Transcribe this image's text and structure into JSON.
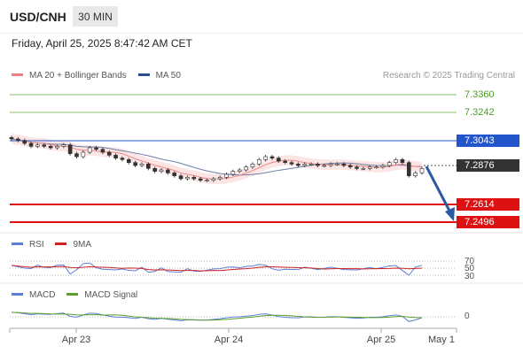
{
  "header": {
    "symbol": "USD/CNH",
    "timeframe": "30 MIN"
  },
  "datetime": "Friday, April 25, 2025 8:47:42 AM CET",
  "legend_price": {
    "ma20": "MA 20 + Bollinger Bands",
    "ma50": "MA 50"
  },
  "credit": "Research © 2025 Trading Central",
  "price_levels": {
    "r2": "7.3360",
    "r1": "7.3242",
    "pivot": "7.3043",
    "last": "7.2876",
    "s1": "7.2614",
    "s2": "7.2496"
  },
  "legend_rsi": {
    "rsi": "RSI",
    "ma": "9MA"
  },
  "rsi_levels": [
    "70",
    "50",
    "30"
  ],
  "legend_macd": {
    "macd": "MACD",
    "signal": "MACD Signal"
  },
  "macd_zero": "0",
  "x_axis": [
    "Apr 23",
    "Apr 24",
    "Apr 25",
    "May 1"
  ],
  "colors": {
    "resistance": "#86c06a",
    "pivot": "#2255cc",
    "support": "#dd1111",
    "last_bg": "#333333",
    "ma20": "#f08080",
    "ma50": "#2a4d8f",
    "rsi": "#5b7fd8",
    "macd": "#5b7fd8",
    "signal": "#5aa02c",
    "arrow": "#2b5aa3"
  },
  "chart_data": {
    "type": "candlestick",
    "price_range": [
      7.2496,
      7.336
    ],
    "levels": [
      {
        "name": "7.3360",
        "value": 7.336
      },
      {
        "name": "7.3242",
        "value": 7.3242
      },
      {
        "name": "7.3043",
        "value": 7.3043
      },
      {
        "name": "7.2876",
        "value": 7.2876
      },
      {
        "name": "7.2614",
        "value": 7.2614
      },
      {
        "name": "7.2496",
        "value": 7.2496
      }
    ],
    "close_series": [
      7.306,
      7.305,
      7.303,
      7.301,
      7.302,
      7.301,
      7.3,
      7.301,
      7.302,
      7.296,
      7.294,
      7.297,
      7.3,
      7.299,
      7.297,
      7.295,
      7.293,
      7.292,
      7.29,
      7.288,
      7.289,
      7.286,
      7.284,
      7.285,
      7.283,
      7.281,
      7.279,
      7.28,
      7.279,
      7.278,
      7.278,
      7.279,
      7.28,
      7.282,
      7.284,
      7.285,
      7.287,
      7.289,
      7.292,
      7.294,
      7.293,
      7.291,
      7.29,
      7.289,
      7.288,
      7.289,
      7.289,
      7.288,
      7.288,
      7.289,
      7.289,
      7.288,
      7.287,
      7.286,
      7.286,
      7.287,
      7.287,
      7.288,
      7.29,
      7.292,
      7.29,
      7.281,
      7.283,
      7.286
    ]
  }
}
